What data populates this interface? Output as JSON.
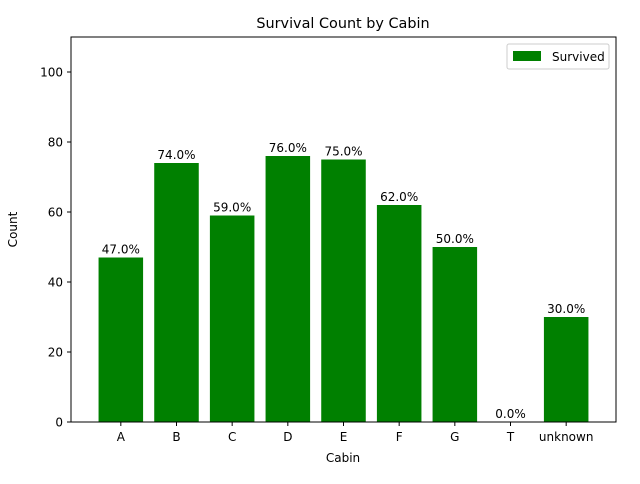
{
  "chart_data": {
    "type": "bar",
    "title": "Survival Count by Cabin",
    "xlabel": "Cabin",
    "ylabel": "Count",
    "ylim": [
      0,
      110
    ],
    "yticks": [
      0,
      20,
      40,
      60,
      80,
      100
    ],
    "categories": [
      "A",
      "B",
      "C",
      "D",
      "E",
      "F",
      "G",
      "T",
      "unknown"
    ],
    "series": [
      {
        "name": "Survived",
        "color": "#008000",
        "values": [
          47,
          74,
          59,
          76,
          75,
          62,
          50,
          0,
          30
        ],
        "labels": [
          "47.0%",
          "74.0%",
          "59.0%",
          "76.0%",
          "75.0%",
          "62.0%",
          "50.0%",
          "0.0%",
          "30.0%"
        ]
      }
    ],
    "legend": {
      "position": "top-right"
    },
    "grid": false
  }
}
